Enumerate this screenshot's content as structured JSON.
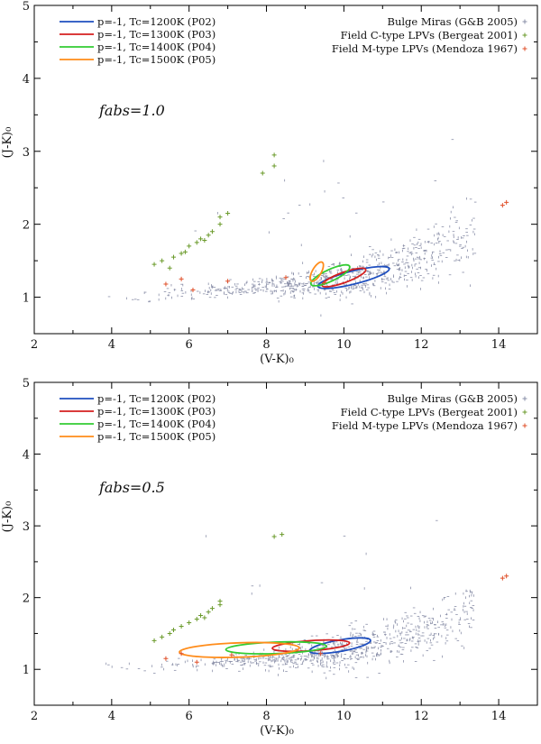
{
  "chart_data": [
    {
      "type": "scatter",
      "panel": "top",
      "annotation": "fabs=1.0",
      "xlabel": "(V-K)₀",
      "ylabel": "(J-K)₀",
      "xlim": [
        2,
        15
      ],
      "ylim": [
        0.5,
        5
      ],
      "xticks": [
        2,
        4,
        6,
        8,
        10,
        12,
        14
      ],
      "yticks": [
        1,
        2,
        3,
        4,
        5
      ],
      "legend_left": [
        {
          "label": "p=-1, Tc=1200K (P02)",
          "color": "#1f4fbf"
        },
        {
          "label": "p=-1, Tc=1300K (P03)",
          "color": "#d41f1f"
        },
        {
          "label": "p=-1, Tc=1400K (P04)",
          "color": "#33cc33"
        },
        {
          "label": "p=-1, Tc=1500K (P05)",
          "color": "#ff8c1a"
        }
      ],
      "legend_right": [
        {
          "label": "Bulge Miras (G&B 2005)",
          "color": "#8a8fa8"
        },
        {
          "label": "Field C-type LPVs (Bergeat 2001)",
          "color": "#6a9a2a"
        },
        {
          "label": "Field M-type LPVs (Mendoza 1967)",
          "color": "#e0502a"
        }
      ],
      "model_loops": [
        {
          "name": "P02",
          "color": "#1f4fbf",
          "cx": 10.25,
          "cy": 1.27,
          "rx": 0.95,
          "ry": 0.09,
          "angle_deg": 14
        },
        {
          "name": "P03",
          "color": "#d41f1f",
          "cx": 10.0,
          "cy": 1.27,
          "rx": 0.6,
          "ry": 0.07,
          "angle_deg": 20
        },
        {
          "name": "P04",
          "color": "#33cc33",
          "cx": 9.65,
          "cy": 1.3,
          "rx": 0.55,
          "ry": 0.08,
          "angle_deg": 25
        },
        {
          "name": "P05",
          "color": "#ff8c1a",
          "cx": 9.3,
          "cy": 1.35,
          "rx": 0.28,
          "ry": 0.06,
          "angle_deg": 60
        }
      ],
      "field_c_type": [
        [
          5.1,
          1.45
        ],
        [
          5.3,
          1.5
        ],
        [
          5.6,
          1.55
        ],
        [
          5.8,
          1.6
        ],
        [
          5.9,
          1.62
        ],
        [
          6.0,
          1.7
        ],
        [
          6.2,
          1.75
        ],
        [
          6.3,
          1.8
        ],
        [
          6.5,
          1.85
        ],
        [
          6.6,
          1.9
        ],
        [
          6.8,
          2.0
        ],
        [
          6.8,
          2.1
        ],
        [
          7.0,
          2.15
        ],
        [
          5.5,
          1.4
        ],
        [
          6.4,
          1.78
        ],
        [
          7.9,
          2.7
        ],
        [
          8.2,
          2.8
        ],
        [
          8.2,
          2.95
        ]
      ],
      "field_m_type": [
        [
          5.4,
          1.18
        ],
        [
          5.8,
          1.25
        ],
        [
          6.1,
          1.1
        ],
        [
          7.0,
          1.22
        ],
        [
          8.5,
          1.27
        ],
        [
          9.5,
          1.2
        ],
        [
          14.2,
          2.3
        ],
        [
          14.1,
          2.26
        ]
      ]
    },
    {
      "type": "scatter",
      "panel": "bottom",
      "annotation": "fabs=0.5",
      "xlabel": "(V-K)₀",
      "ylabel": "(J-K)₀",
      "xlim": [
        2,
        15
      ],
      "ylim": [
        0.5,
        5
      ],
      "xticks": [
        2,
        4,
        6,
        8,
        10,
        12,
        14
      ],
      "yticks": [
        1,
        2,
        3,
        4,
        5
      ],
      "legend_left": [
        {
          "label": "p=-1, Tc=1200K (P02)",
          "color": "#1f4fbf"
        },
        {
          "label": "p=-1, Tc=1300K (P03)",
          "color": "#d41f1f"
        },
        {
          "label": "p=-1, Tc=1400K (P04)",
          "color": "#33cc33"
        },
        {
          "label": "p=-1, Tc=1500K (P05)",
          "color": "#ff8c1a"
        }
      ],
      "legend_right": [
        {
          "label": "Bulge Miras (G&B 2005)",
          "color": "#8a8fa8"
        },
        {
          "label": "Field C-type LPVs (Bergeat 2001)",
          "color": "#6a9a2a"
        },
        {
          "label": "Field M-type LPVs (Mendoza 1967)",
          "color": "#e0502a"
        }
      ],
      "model_loops": [
        {
          "name": "P02",
          "color": "#1f4fbf",
          "cx": 9.9,
          "cy": 1.33,
          "rx": 0.8,
          "ry": 0.08,
          "angle_deg": 10
        },
        {
          "name": "P03",
          "color": "#d41f1f",
          "cx": 9.15,
          "cy": 1.33,
          "rx": 1.0,
          "ry": 0.07,
          "angle_deg": 4
        },
        {
          "name": "P04",
          "color": "#33cc33",
          "cx": 8.25,
          "cy": 1.3,
          "rx": 1.3,
          "ry": 0.08,
          "angle_deg": 2
        },
        {
          "name": "P05",
          "color": "#ff8c1a",
          "cx": 7.3,
          "cy": 1.27,
          "rx": 1.55,
          "ry": 0.1,
          "angle_deg": 2
        }
      ],
      "field_c_type": [
        [
          5.1,
          1.4
        ],
        [
          5.3,
          1.45
        ],
        [
          5.6,
          1.55
        ],
        [
          5.8,
          1.6
        ],
        [
          6.0,
          1.65
        ],
        [
          6.2,
          1.7
        ],
        [
          6.3,
          1.75
        ],
        [
          6.5,
          1.8
        ],
        [
          6.6,
          1.85
        ],
        [
          6.8,
          1.9
        ],
        [
          6.8,
          1.95
        ],
        [
          5.5,
          1.5
        ],
        [
          6.4,
          1.72
        ],
        [
          8.2,
          2.85
        ],
        [
          8.4,
          2.88
        ]
      ],
      "field_m_type": [
        [
          5.4,
          1.15
        ],
        [
          5.8,
          1.22
        ],
        [
          6.2,
          1.1
        ],
        [
          7.1,
          1.2
        ],
        [
          9.4,
          1.22
        ],
        [
          14.2,
          2.3
        ],
        [
          14.1,
          2.27
        ]
      ]
    }
  ]
}
